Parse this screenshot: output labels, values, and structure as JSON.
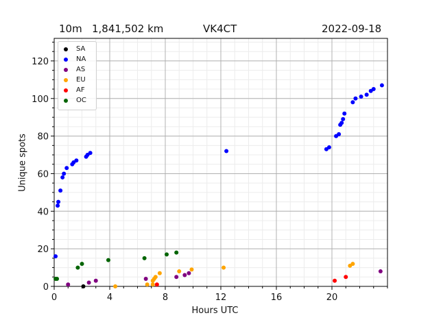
{
  "header": {
    "band": "10m",
    "distance": "1,841,502 km",
    "callsign": "VK4CT",
    "date": "2022-09-18"
  },
  "chart_data": {
    "type": "scatter",
    "title": "10m   1,841,502 km   VK4CT   2022-09-18",
    "xlabel": "Hours UTC",
    "ylabel": "Unique spots",
    "xlim": [
      0,
      24
    ],
    "ylim": [
      0,
      132
    ],
    "xticks": [
      0,
      4,
      8,
      12,
      16,
      20
    ],
    "yticks": [
      0,
      20,
      40,
      60,
      80,
      100,
      120
    ],
    "grid": true,
    "legend_position": "upper left",
    "series": [
      {
        "name": "SA",
        "color": "#000000",
        "points": [
          [
            2.1,
            0
          ]
        ]
      },
      {
        "name": "NA",
        "color": "#0000ff",
        "points": [
          [
            0.1,
            16
          ],
          [
            0.25,
            43
          ],
          [
            0.3,
            45
          ],
          [
            0.45,
            51
          ],
          [
            0.6,
            58
          ],
          [
            0.7,
            60
          ],
          [
            0.9,
            63
          ],
          [
            1.3,
            65
          ],
          [
            1.4,
            66
          ],
          [
            1.6,
            67
          ],
          [
            2.3,
            69
          ],
          [
            2.4,
            70
          ],
          [
            2.6,
            71
          ],
          [
            12.4,
            72
          ],
          [
            19.6,
            73
          ],
          [
            19.8,
            74
          ],
          [
            20.3,
            80
          ],
          [
            20.5,
            81
          ],
          [
            20.6,
            86
          ],
          [
            20.7,
            87
          ],
          [
            20.8,
            89
          ],
          [
            20.9,
            92
          ],
          [
            21.5,
            98
          ],
          [
            21.7,
            100
          ],
          [
            22.1,
            101
          ],
          [
            22.5,
            102
          ],
          [
            22.8,
            104
          ],
          [
            23.0,
            105
          ],
          [
            23.6,
            107
          ]
        ]
      },
      {
        "name": "AS",
        "color": "#800080",
        "points": [
          [
            1.0,
            1
          ],
          [
            2.5,
            2
          ],
          [
            3.0,
            3
          ],
          [
            6.6,
            4
          ],
          [
            8.8,
            5
          ],
          [
            9.4,
            6
          ],
          [
            9.7,
            7
          ],
          [
            23.5,
            8
          ]
        ]
      },
      {
        "name": "EU",
        "color": "#ffa500",
        "points": [
          [
            4.4,
            0
          ],
          [
            6.7,
            1
          ],
          [
            7.1,
            1
          ],
          [
            7.1,
            3
          ],
          [
            7.2,
            4
          ],
          [
            7.3,
            5
          ],
          [
            7.6,
            7
          ],
          [
            9.0,
            8
          ],
          [
            9.9,
            9
          ],
          [
            12.2,
            10
          ],
          [
            21.3,
            11
          ],
          [
            21.5,
            12
          ]
        ]
      },
      {
        "name": "AF",
        "color": "#ff0000",
        "points": [
          [
            7.4,
            1
          ],
          [
            20.2,
            3
          ],
          [
            21.0,
            5
          ]
        ]
      },
      {
        "name": "OC",
        "color": "#006400",
        "points": [
          [
            0.1,
            4
          ],
          [
            0.2,
            4
          ],
          [
            1.7,
            10
          ],
          [
            2.0,
            12
          ],
          [
            3.9,
            14
          ],
          [
            6.5,
            15
          ],
          [
            8.1,
            17
          ],
          [
            8.8,
            18
          ]
        ]
      }
    ]
  }
}
